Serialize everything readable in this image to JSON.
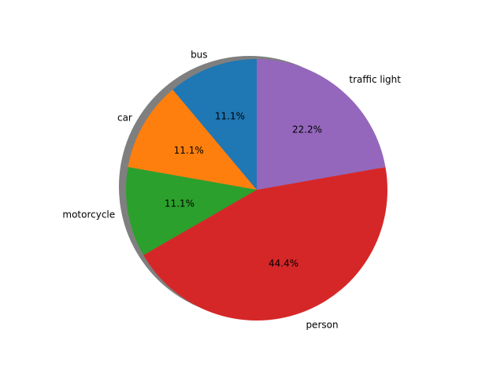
{
  "chart_data": {
    "type": "pie",
    "title": "",
    "start_angle_deg": 90,
    "direction": "counterclockwise",
    "shadow": true,
    "slices": [
      {
        "label": "bus",
        "value": 1,
        "percent_label": "11.1%",
        "color": "#1f77b4"
      },
      {
        "label": "car",
        "value": 1,
        "percent_label": "11.1%",
        "color": "#ff7f0e"
      },
      {
        "label": "motorcycle",
        "value": 1,
        "percent_label": "11.1%",
        "color": "#2ca02c"
      },
      {
        "label": "person",
        "value": 4,
        "percent_label": "44.4%",
        "color": "#d62728"
      },
      {
        "label": "traffic light",
        "value": 2,
        "percent_label": "22.2%",
        "color": "#9467bd"
      }
    ]
  }
}
